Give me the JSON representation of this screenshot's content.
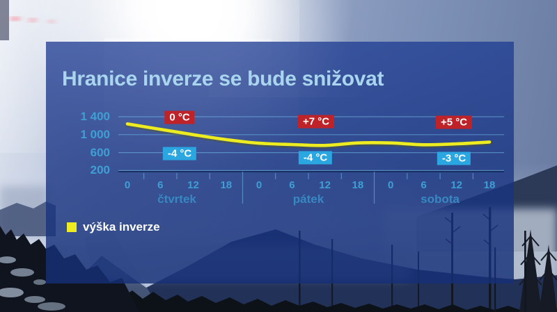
{
  "chart_data": {
    "type": "line",
    "title": "Hranice inverze se bude snižovat",
    "y_axis": {
      "tick_labels": [
        "1 400",
        "1 000",
        "600",
        "200"
      ],
      "tick_values": [
        1400,
        1000,
        600,
        200
      ]
    },
    "x_axis": {
      "hour_labels": [
        "0",
        "6",
        "12",
        "18",
        "0",
        "6",
        "12",
        "18",
        "0",
        "6",
        "12",
        "18"
      ],
      "day_labels": [
        "čtvrtek",
        "pátek",
        "sobota"
      ]
    },
    "series": [
      {
        "name": "výška inverze",
        "color": "#ecec20",
        "values": [
          1240,
          1120,
          1000,
          890,
          810,
          780,
          760,
          815,
          815,
          775,
          795,
          835
        ]
      }
    ],
    "annotations": [
      {
        "day": "čtvrtek",
        "high": "0 °C",
        "low": "-4 °C"
      },
      {
        "day": "pátek",
        "high": "+7 °C",
        "low": "-4 °C"
      },
      {
        "day": "sobota",
        "high": "+5 °C",
        "low": "-3 °C"
      }
    ],
    "legend": [
      {
        "label": "výška inverze",
        "color": "#ecec20"
      }
    ],
    "styles": {
      "high_badge_bg": "#bd2328",
      "low_badge_bg": "#2aa6e0",
      "line_color": "#ecec20",
      "title_color": "#a9d6ee"
    }
  }
}
